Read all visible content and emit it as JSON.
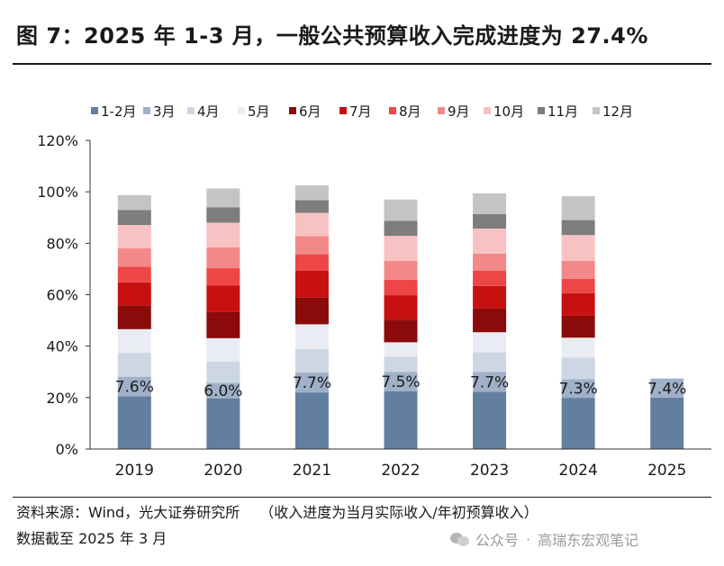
{
  "title": "图 7：2025 年 1-3 月，一般公共预算收入完成进度为 27.4%",
  "chart_data": {
    "type": "bar",
    "stacked": true,
    "categories": [
      "2019",
      "2020",
      "2021",
      "2022",
      "2023",
      "2024",
      "2025"
    ],
    "ylim": [
      0,
      120
    ],
    "yticks": [
      "0%",
      "20%",
      "40%",
      "60%",
      "80%",
      "100%",
      "120%"
    ],
    "ytick_values": [
      0,
      20,
      40,
      60,
      80,
      100,
      120
    ],
    "grid": false,
    "legend_position": "top",
    "series": [
      {
        "name": "1-2月",
        "color": "#627ea0",
        "values": [
          20.5,
          19.7,
          22.0,
          22.5,
          22.3,
          19.9,
          20.0
        ]
      },
      {
        "name": "3月",
        "color": "#9fb0c8",
        "values": [
          7.6,
          6.0,
          7.7,
          7.5,
          7.7,
          7.3,
          7.4
        ]
      },
      {
        "name": "4月",
        "color": "#cdd6e3",
        "values": [
          9.3,
          8.3,
          9.2,
          5.9,
          7.6,
          8.4,
          null
        ]
      },
      {
        "name": "5月",
        "color": "#e9edf3",
        "values": [
          9.2,
          9.1,
          9.6,
          5.6,
          7.8,
          7.7,
          null
        ]
      },
      {
        "name": "6月",
        "color": "#8b0a0a",
        "values": [
          9.3,
          10.1,
          10.4,
          8.8,
          9.2,
          8.5,
          null
        ]
      },
      {
        "name": "7月",
        "color": "#c71010",
        "values": [
          8.9,
          10.3,
          10.4,
          9.5,
          8.8,
          8.8,
          null
        ]
      },
      {
        "name": "8月",
        "color": "#ed4646",
        "values": [
          6.1,
          6.8,
          6.4,
          6.0,
          6.0,
          5.6,
          null
        ]
      },
      {
        "name": "9月",
        "color": "#f38888",
        "values": [
          7.1,
          8.1,
          7.1,
          7.4,
          6.6,
          7.0,
          null
        ]
      },
      {
        "name": "10月",
        "color": "#f9c2c2",
        "values": [
          9.1,
          9.6,
          9.0,
          9.7,
          9.7,
          10.0,
          null
        ]
      },
      {
        "name": "11月",
        "color": "#7d7d7d",
        "values": [
          5.8,
          6.0,
          5.0,
          5.8,
          5.6,
          5.8,
          null
        ]
      },
      {
        "name": "12月",
        "color": "#c4c4c4",
        "values": [
          5.8,
          7.3,
          5.7,
          8.3,
          8.1,
          9.3,
          null
        ]
      }
    ],
    "data_labels": [
      "7.6%",
      "6.0%",
      "7.7%",
      "7.5%",
      "7.7%",
      "7.3%",
      "7.4%"
    ]
  },
  "footer": {
    "source": "资料来源：Wind，光大证券研究所",
    "note": "（收入进度为当月实际收入/年初预算收入）",
    "as_of": "数据截至 2025 年 3 月"
  },
  "watermark": {
    "platform": "公众号",
    "separator": "·",
    "author": "高瑞东宏观笔记",
    "icon": "wechat-icon"
  }
}
